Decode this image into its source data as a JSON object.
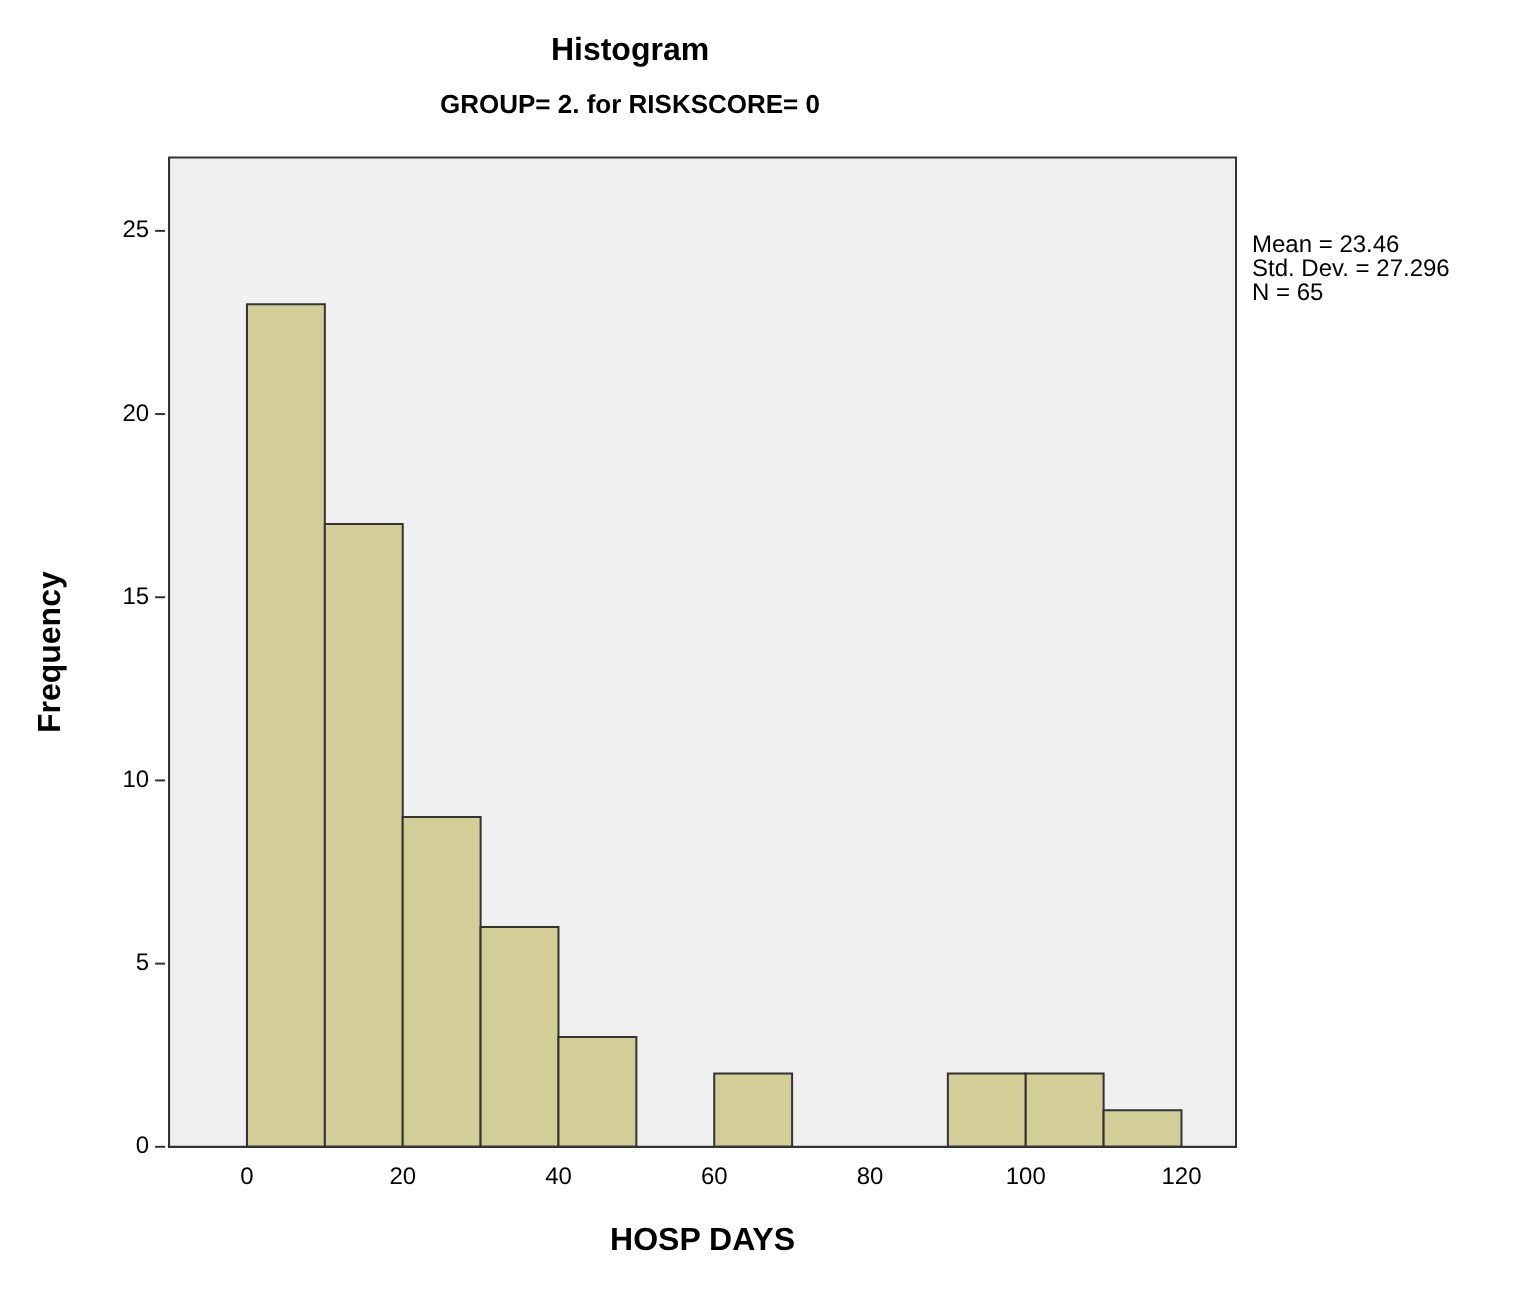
{
  "chart_data": {
    "type": "histogram",
    "title": "Histogram",
    "subtitle": "GROUP= 2. for RISKSCORE= 0",
    "xlabel": "HOSP DAYS",
    "ylabel": "Frequency",
    "bins": [
      0,
      10,
      20,
      30,
      40,
      50,
      60,
      70,
      80,
      90,
      100,
      110,
      120
    ],
    "values": [
      23,
      17,
      9,
      6,
      3,
      0,
      2,
      0,
      0,
      2,
      2,
      1
    ],
    "color": "#d3ce97",
    "xlim": [
      -10,
      127
    ],
    "xticks": [
      0,
      20,
      40,
      60,
      80,
      100,
      120
    ],
    "ylim": [
      0,
      27
    ],
    "yticks": [
      0,
      5,
      10,
      15,
      20,
      25
    ],
    "grid": false,
    "annotations": [
      "Mean = 23.46",
      "Std. Dev. = 27.296",
      "N = 65"
    ]
  }
}
